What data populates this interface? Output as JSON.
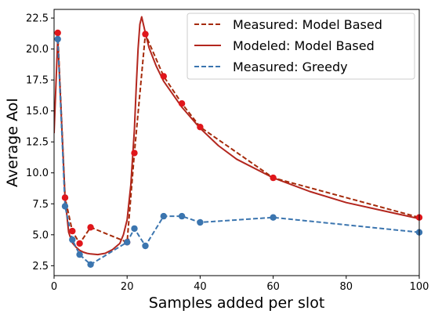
{
  "chart_data": {
    "type": "line",
    "title": "",
    "xlabel": "Samples added per slot",
    "ylabel": "Average AoI",
    "xlim": [
      0,
      100
    ],
    "ylim": [
      1.7,
      23.2
    ],
    "xticks": [
      0,
      20,
      40,
      60,
      80,
      100
    ],
    "xtick_labels": [
      "0",
      "20",
      "40",
      "60",
      "80",
      "100"
    ],
    "yticks": [
      2.5,
      5.0,
      7.5,
      10.0,
      12.5,
      15.0,
      17.5,
      20.0,
      22.5
    ],
    "ytick_labels": [
      "2.5",
      "5.0",
      "7.5",
      "10.0",
      "12.5",
      "15.0",
      "17.5",
      "20.0",
      "22.5"
    ],
    "grid": false,
    "legend_position": "top-right",
    "series": [
      {
        "name": "Measured: Model Based",
        "color": "#a52a0a",
        "marker_color": "#e0161b",
        "linestyle": "dashed",
        "markers": true,
        "x": [
          1,
          3,
          5,
          7,
          10,
          20,
          22,
          25,
          30,
          35,
          40,
          60,
          100
        ],
        "y": [
          21.3,
          8.0,
          5.3,
          4.3,
          5.6,
          4.4,
          11.6,
          21.2,
          17.8,
          15.6,
          13.7,
          9.6,
          6.4
        ]
      },
      {
        "name": "Modeled: Model Based",
        "color": "#b3261e",
        "linestyle": "solid",
        "markers": false,
        "x": [
          0,
          1,
          2,
          3,
          4,
          5,
          6,
          7,
          8,
          9,
          10,
          12,
          14,
          16,
          18,
          19,
          20,
          21,
          22,
          22.5,
          23,
          23.5,
          24,
          25,
          26,
          28,
          30,
          35,
          40,
          45,
          50,
          60,
          70,
          80,
          90,
          100
        ],
        "y": [
          13.2,
          20.9,
          14.5,
          8.0,
          5.2,
          4.35,
          4.0,
          3.75,
          3.6,
          3.5,
          3.45,
          3.4,
          3.5,
          3.8,
          4.3,
          5.0,
          6.2,
          9.0,
          13.5,
          17.0,
          20.0,
          22.0,
          22.6,
          21.3,
          20.1,
          18.6,
          17.4,
          15.3,
          13.6,
          12.2,
          11.1,
          9.6,
          8.5,
          7.6,
          6.95,
          6.3
        ]
      },
      {
        "name": "Measured: Greedy",
        "color": "#3b75af",
        "marker_color": "#3b75af",
        "linestyle": "dashed",
        "markers": true,
        "x": [
          1,
          3,
          5,
          7,
          10,
          20,
          22,
          25,
          30,
          35,
          40,
          60,
          100
        ],
        "y": [
          20.8,
          7.3,
          4.6,
          3.4,
          2.6,
          4.4,
          5.5,
          4.1,
          6.5,
          6.5,
          6.0,
          6.4,
          5.2
        ]
      }
    ]
  }
}
